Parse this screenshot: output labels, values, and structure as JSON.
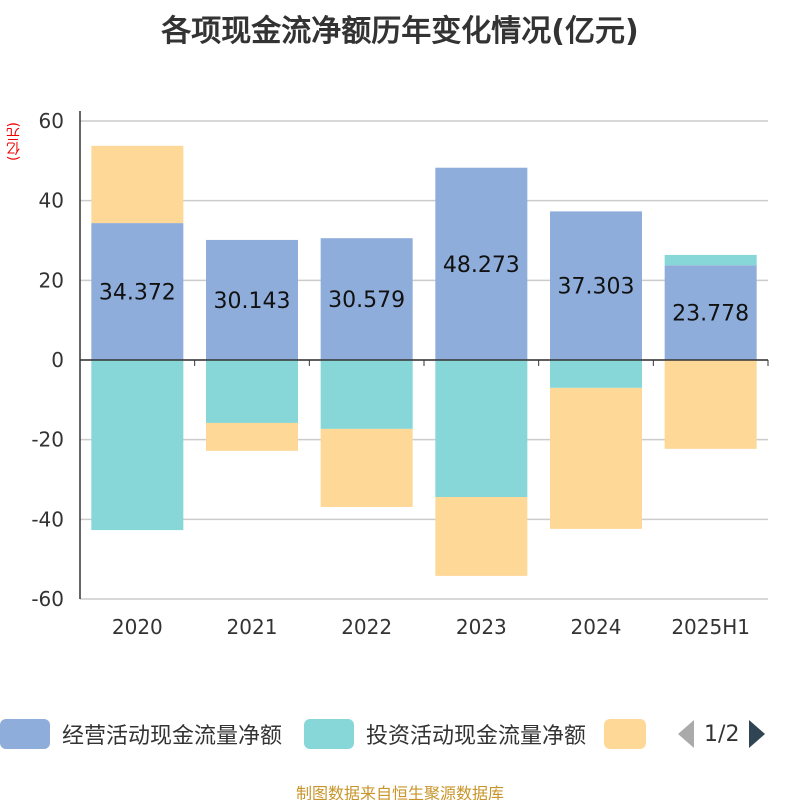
{
  "title": "各项现金流净额历年变化情况(亿元)",
  "source": "制图数据来自恒生聚源数据库",
  "legend_pager": "1/2",
  "chart_data": {
    "type": "bar",
    "stacked": true,
    "title": "各项现金流净额历年变化情况(亿元)",
    "ylabel": "(亿元)",
    "categories": [
      "2020",
      "2021",
      "2022",
      "2023",
      "2024",
      "2025H1"
    ],
    "ylim": [
      -60,
      60
    ],
    "yticks": [
      60,
      40,
      20,
      0,
      -20,
      -40,
      -60
    ],
    "grid": true,
    "legend_placement": "bottom",
    "series": [
      {
        "name": "经营活动现金流量净额",
        "color": "#8eaddb",
        "values": [
          34.372,
          30.143,
          30.579,
          48.273,
          37.303,
          23.778
        ],
        "labels": [
          "34.372",
          "30.143",
          "30.579",
          "48.273",
          "37.303",
          "23.778"
        ]
      },
      {
        "name": "投资活动现金流量净额",
        "color": "#87d6d8",
        "values": [
          -42.7,
          -15.8,
          -17.3,
          -34.4,
          -7.0,
          2.6
        ]
      },
      {
        "name": "",
        "color": "#fed897",
        "values": [
          19.4,
          -7.0,
          -19.6,
          -19.8,
          -35.4,
          -22.3
        ]
      }
    ]
  }
}
